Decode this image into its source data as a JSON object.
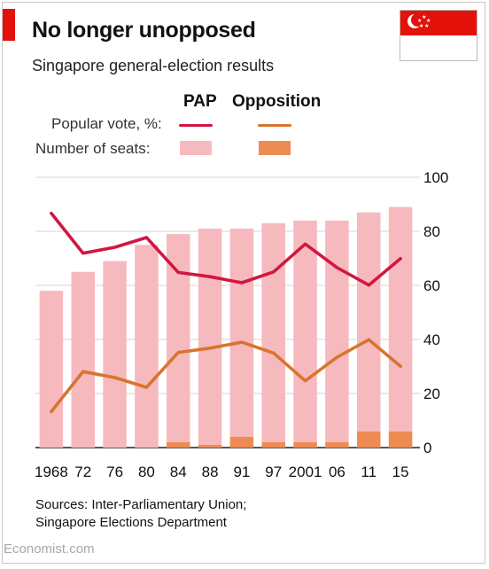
{
  "header": {
    "title": "No longer unopposed",
    "subtitle": "Singapore general-election results"
  },
  "legend": {
    "col_pap": "PAP",
    "col_opposition": "Opposition",
    "row_vote": "Popular vote, %:",
    "row_seats": "Number of  seats:"
  },
  "colors": {
    "pap_line": "#d1173f",
    "opposition_line": "#d8742e",
    "pap_bar": "#f6babe",
    "opposition_bar": "#ed8b52",
    "red_tag": "#e3120b"
  },
  "chart_data": {
    "type": "bar",
    "categories": [
      "1968",
      "72",
      "76",
      "80",
      "84",
      "88",
      "91",
      "97",
      "2001",
      "06",
      "11",
      "15"
    ],
    "ylim": [
      0,
      100
    ],
    "yticks": [
      0,
      20,
      40,
      60,
      80,
      100
    ],
    "series": [
      {
        "name": "PAP",
        "kind": "line",
        "metric": "Popular vote, %",
        "values": [
          86.7,
          71.9,
          74.1,
          77.7,
          64.8,
          63.2,
          61.0,
          65.0,
          75.3,
          66.6,
          60.1,
          69.9
        ]
      },
      {
        "name": "Opposition",
        "kind": "line",
        "metric": "Popular vote, %",
        "values": [
          13.3,
          28.1,
          25.9,
          22.3,
          35.2,
          36.8,
          39.0,
          35.0,
          24.7,
          33.4,
          39.9,
          30.1
        ]
      },
      {
        "name": "PAP",
        "kind": "bar",
        "metric": "Number of seats",
        "values": [
          58,
          65,
          69,
          75,
          77,
          80,
          77,
          81,
          82,
          82,
          81,
          83
        ]
      },
      {
        "name": "Opposition",
        "kind": "bar",
        "metric": "Number of seats",
        "values": [
          0,
          0,
          0,
          0,
          2,
          1,
          4,
          2,
          2,
          2,
          6,
          6
        ]
      }
    ]
  },
  "footer": {
    "sources_line1": "Sources: Inter-Parliamentary Union;",
    "sources_line2": "Singapore Elections Department",
    "publisher": "Economist.com"
  }
}
